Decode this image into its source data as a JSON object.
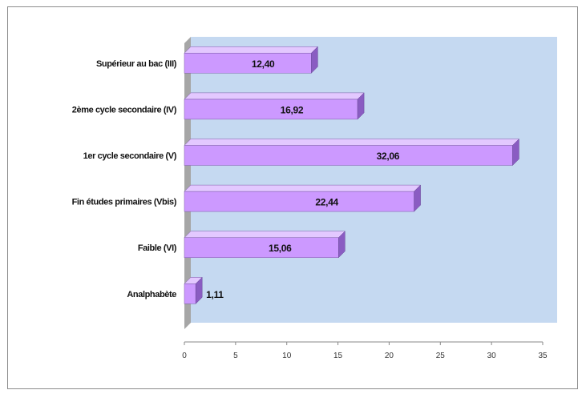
{
  "chart_data": {
    "type": "bar",
    "orientation": "horizontal",
    "title": "",
    "xlabel": "",
    "ylabel": "",
    "categories": [
      "Supérieur au bac (III)",
      "2ème cycle secondaire (IV)",
      "1er cycle secondaire (V)",
      "Fin études primaires (Vbis)",
      "Faible (VI)",
      "Analphabète"
    ],
    "values": [
      12.4,
      16.92,
      32.06,
      22.44,
      15.06,
      1.11
    ],
    "value_labels": [
      "12,40",
      "16,92",
      "32,06",
      "22,44",
      "15,06",
      "1,11"
    ],
    "xlim": [
      0,
      35
    ],
    "x_ticks": [
      0,
      5,
      10,
      15,
      20,
      25,
      30,
      35
    ],
    "x_tick_labels": [
      "0",
      "5",
      "10",
      "15",
      "20",
      "25",
      "30",
      "35"
    ],
    "grid": false,
    "legend": "none",
    "colors": {
      "bar_front": "#cc99ff",
      "bar_top": "#e3c8ff",
      "bar_side": "#8a5cc2",
      "plot_back": "#c5d9f1",
      "wall": "#a6a6a6"
    }
  }
}
